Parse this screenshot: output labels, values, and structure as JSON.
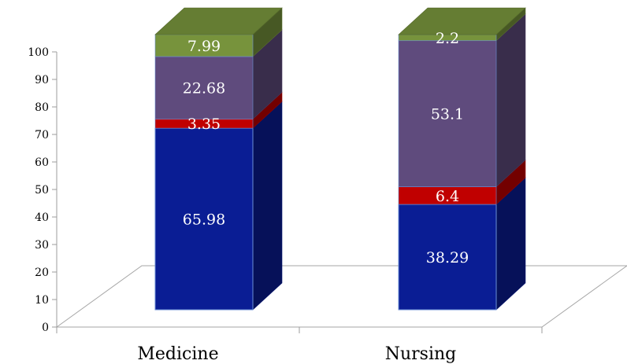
{
  "chart_data": {
    "type": "bar",
    "stacked": true,
    "three_d": true,
    "categories": [
      "Medicine",
      "Nursing"
    ],
    "series": [
      {
        "values": [
          65.98,
          38.29
        ],
        "color": "#0a1d94"
      },
      {
        "values": [
          3.35,
          6.4
        ],
        "color": "#c00000"
      },
      {
        "values": [
          22.68,
          53.1
        ],
        "color": "#5f4b7d"
      },
      {
        "values": [
          7.99,
          2.2
        ],
        "color": "#77933c"
      }
    ],
    "ylim": [
      0,
      100
    ],
    "yticks": [
      "0",
      "10",
      "20",
      "30",
      "40",
      "50",
      "60",
      "70",
      "80",
      "90",
      "100"
    ],
    "data_labels": [
      [
        "65.98",
        "38.29"
      ],
      [
        "3.35",
        "6.4"
      ],
      [
        "22.68",
        "53.1"
      ],
      [
        "7.99",
        "2.2"
      ]
    ],
    "grid": false,
    "legend": "none"
  }
}
